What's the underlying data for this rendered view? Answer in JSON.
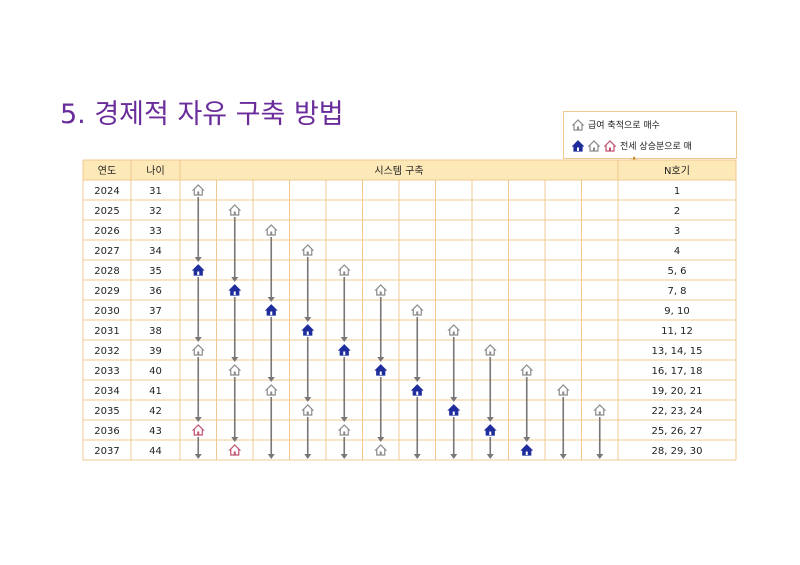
{
  "title": "5. 경제적 자유 구축 방법",
  "legend": {
    "item1": "급여 축적으로 매수",
    "item2": "전세 상승분으로 매"
  },
  "table": {
    "headers": {
      "year": "연도",
      "age": "나이",
      "system": "시스템 구축",
      "n": "N호기"
    },
    "rows": [
      {
        "year": "2024",
        "age": "31",
        "n": "1"
      },
      {
        "year": "2025",
        "age": "32",
        "n": "2"
      },
      {
        "year": "2026",
        "age": "33",
        "n": "3"
      },
      {
        "year": "2027",
        "age": "34",
        "n": "4"
      },
      {
        "year": "2028",
        "age": "35",
        "n": "5, 6"
      },
      {
        "year": "2029",
        "age": "36",
        "n": "7, 8"
      },
      {
        "year": "2030",
        "age": "37",
        "n": "9, 10"
      },
      {
        "year": "2031",
        "age": "38",
        "n": "11, 12"
      },
      {
        "year": "2032",
        "age": "39",
        "n": "13, 14, 15"
      },
      {
        "year": "2033",
        "age": "40",
        "n": "16, 17, 18"
      },
      {
        "year": "2034",
        "age": "41",
        "n": "19, 20, 21"
      },
      {
        "year": "2035",
        "age": "42",
        "n": "22, 23, 24"
      },
      {
        "year": "2036",
        "age": "43",
        "n": "25, 26, 27"
      },
      {
        "year": "2037",
        "age": "44",
        "n": "28, 29, 30"
      }
    ]
  },
  "columns": [
    {
      "icons": [
        {
          "row": 0,
          "type": "gray"
        },
        {
          "row": 4,
          "type": "blue"
        },
        {
          "row": 8,
          "type": "gray"
        },
        {
          "row": 12,
          "type": "red"
        }
      ]
    },
    {
      "icons": [
        {
          "row": 1,
          "type": "gray"
        },
        {
          "row": 5,
          "type": "blue"
        },
        {
          "row": 9,
          "type": "gray"
        },
        {
          "row": 13,
          "type": "red"
        }
      ]
    },
    {
      "icons": [
        {
          "row": 2,
          "type": "gray"
        },
        {
          "row": 6,
          "type": "blue"
        },
        {
          "row": 10,
          "type": "gray"
        }
      ]
    },
    {
      "icons": [
        {
          "row": 3,
          "type": "gray"
        },
        {
          "row": 7,
          "type": "blue"
        },
        {
          "row": 11,
          "type": "gray"
        }
      ]
    },
    {
      "icons": [
        {
          "row": 4,
          "type": "gray"
        },
        {
          "row": 8,
          "type": "blue"
        },
        {
          "row": 12,
          "type": "gray"
        }
      ]
    },
    {
      "icons": [
        {
          "row": 5,
          "type": "gray"
        },
        {
          "row": 9,
          "type": "blue"
        },
        {
          "row": 13,
          "type": "gray"
        }
      ]
    },
    {
      "icons": [
        {
          "row": 6,
          "type": "gray"
        },
        {
          "row": 10,
          "type": "blue"
        }
      ]
    },
    {
      "icons": [
        {
          "row": 7,
          "type": "gray"
        },
        {
          "row": 11,
          "type": "blue"
        }
      ]
    },
    {
      "icons": [
        {
          "row": 8,
          "type": "gray"
        },
        {
          "row": 12,
          "type": "blue"
        }
      ]
    },
    {
      "icons": [
        {
          "row": 9,
          "type": "gray"
        },
        {
          "row": 13,
          "type": "blue"
        }
      ]
    },
    {
      "icons": [
        {
          "row": 10,
          "type": "gray"
        }
      ]
    },
    {
      "icons": [
        {
          "row": 11,
          "type": "gray"
        }
      ]
    }
  ],
  "colors": {
    "title": "#6a2c9a",
    "header_bg": "#fde9b8",
    "grid": "#f0c890",
    "house_gray": "#8a8a8a",
    "house_blue": "#1f2d9c",
    "house_red": "#c0506e",
    "arrow": "#777777"
  }
}
